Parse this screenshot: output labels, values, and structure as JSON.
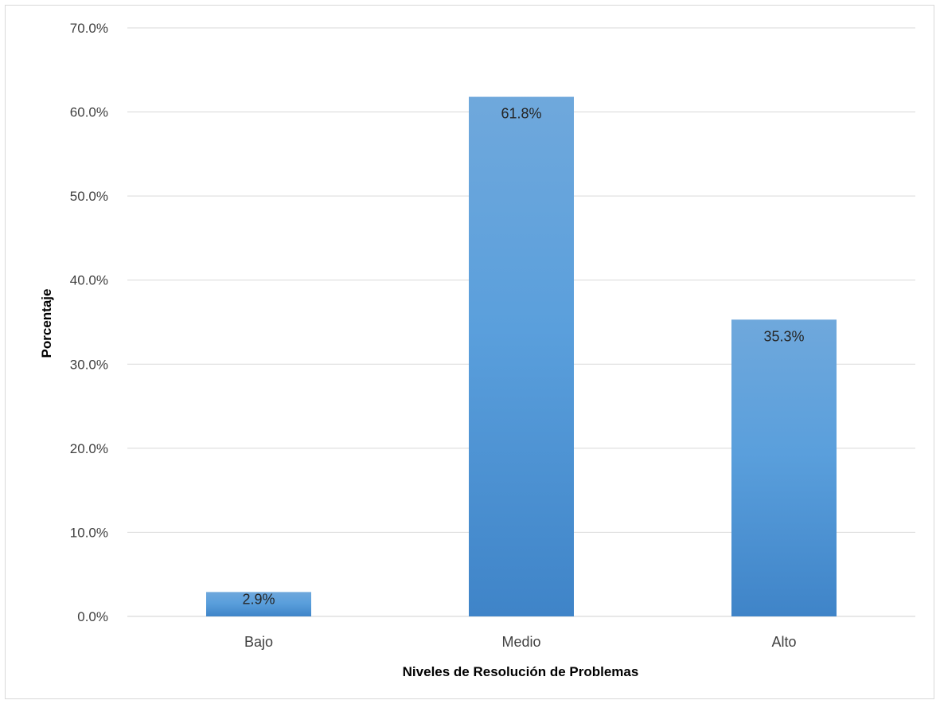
{
  "chart_data": {
    "type": "bar",
    "categories": [
      "Bajo",
      "Medio",
      "Alto"
    ],
    "values": [
      2.9,
      61.8,
      35.3
    ],
    "data_labels": [
      "2.9%",
      "61.8%",
      "35.3%"
    ],
    "xlabel": "Niveles de Resolución de Problemas",
    "ylabel": "Porcentaje",
    "ylim": [
      0,
      70
    ],
    "y_ticks": [
      "0.0%",
      "10.0%",
      "20.0%",
      "30.0%",
      "40.0%",
      "50.0%",
      "60.0%",
      "70.0%"
    ],
    "grid": true,
    "legend": "none",
    "colors": {
      "bar_top": "#6fa8dc",
      "bar_mid": "#5a9fdc",
      "bar_bottom": "#3f84c8",
      "grid": "#d9d9d9"
    }
  }
}
